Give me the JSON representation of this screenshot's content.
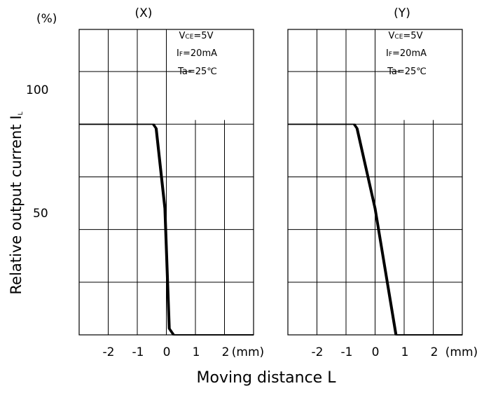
{
  "chart_data": {
    "type": "line",
    "y_unit": "(%)",
    "ylabel_main": "Relative output current",
    "ylabel_symbol": "I",
    "ylabel_symbol_sub": "L",
    "xlabel": "Moving distance L",
    "x_unit": "(mm)",
    "x_ticks": [
      -2,
      -1,
      0,
      1,
      2
    ],
    "y_ticks": [
      100,
      50
    ],
    "xlim": [
      -3,
      3
    ],
    "ylim": [
      0,
      145
    ],
    "panels": [
      {
        "title": "(X)",
        "conditions": {
          "vce_main": "V",
          "vce_sub": "CE",
          "vce_val": "=5V",
          "if_main": "I",
          "if_sub": "F",
          "if_val": "=20mA",
          "ta": "Ta=25℃"
        },
        "series": [
          {
            "x": [
              -3,
              -0.45,
              -0.35,
              -0.05,
              0.1,
              0.25,
              3
            ],
            "y": [
              100,
              100,
              98,
              60,
              3,
              0,
              0
            ]
          },
          {
            "x": [
              -3,
              -0.42,
              -0.32,
              -0.02,
              0.13,
              0.28,
              3
            ],
            "y": [
              100,
              100,
              98,
              60,
              3,
              0,
              0
            ]
          },
          {
            "x": [
              -3,
              -0.48,
              -0.38,
              -0.08,
              0.07,
              0.22,
              3
            ],
            "y": [
              100,
              100,
              98,
              60,
              3,
              0,
              0
            ]
          }
        ]
      },
      {
        "title": "(Y)",
        "conditions": {
          "vce_main": "V",
          "vce_sub": "CE",
          "vce_val": "=5V",
          "if_main": "I",
          "if_sub": "F",
          "if_val": "=20mA",
          "ta": "Ta=25℃"
        },
        "series": [
          {
            "x": [
              -3,
              -0.72,
              -0.62,
              0.0,
              0.72,
              3
            ],
            "y": [
              100,
              100,
              98,
              60,
              0,
              0
            ]
          },
          {
            "x": [
              -3,
              -0.69,
              -0.59,
              0.03,
              0.75,
              3
            ],
            "y": [
              100,
              100,
              98,
              60,
              0,
              0
            ]
          },
          {
            "x": [
              -3,
              -0.75,
              -0.65,
              -0.03,
              0.69,
              3
            ],
            "y": [
              100,
              100,
              98,
              60,
              0,
              0
            ]
          }
        ]
      }
    ]
  }
}
